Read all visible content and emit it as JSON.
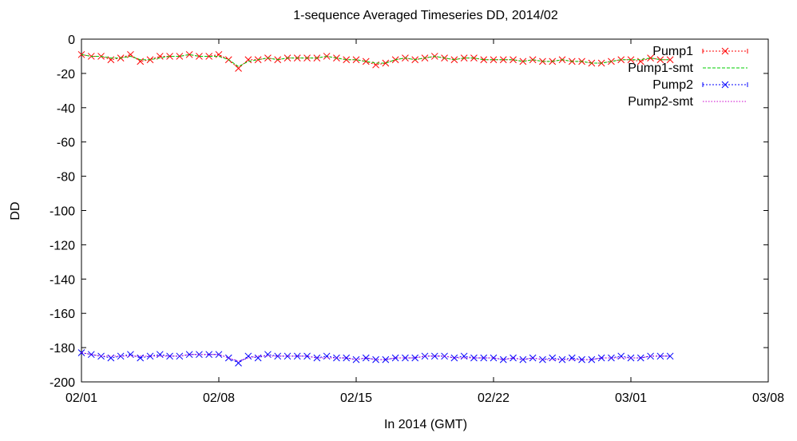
{
  "chart_data": {
    "type": "line",
    "title": "1-sequence Averaged Timeseries DD, 2014/02",
    "xlabel": "In 2014 (GMT)",
    "ylabel": "DD",
    "x_ticks": [
      "02/01",
      "02/08",
      "02/15",
      "02/22",
      "03/01",
      "03/08"
    ],
    "y_ticks": [
      "0",
      "-20",
      "-40",
      "-60",
      "-80",
      "-100",
      "-120",
      "-140",
      "-160",
      "-180",
      "-200"
    ],
    "xlim": [
      "2014-02-01",
      "2014-03-08"
    ],
    "ylim": [
      -200,
      0
    ],
    "grid": false,
    "legend_position": "top-right",
    "x": [
      "2014-02-01T00:00",
      "2014-02-01T12:00",
      "2014-02-02T00:00",
      "2014-02-02T12:00",
      "2014-02-03T00:00",
      "2014-02-03T12:00",
      "2014-02-04T00:00",
      "2014-02-04T12:00",
      "2014-02-05T00:00",
      "2014-02-05T12:00",
      "2014-02-06T00:00",
      "2014-02-06T12:00",
      "2014-02-07T00:00",
      "2014-02-07T12:00",
      "2014-02-08T00:00",
      "2014-02-08T12:00",
      "2014-02-09T00:00",
      "2014-02-09T12:00",
      "2014-02-10T00:00",
      "2014-02-10T12:00",
      "2014-02-11T00:00",
      "2014-02-11T12:00",
      "2014-02-12T00:00",
      "2014-02-12T12:00",
      "2014-02-13T00:00",
      "2014-02-13T12:00",
      "2014-02-14T00:00",
      "2014-02-14T12:00",
      "2014-02-15T00:00",
      "2014-02-15T12:00",
      "2014-02-16T00:00",
      "2014-02-16T12:00",
      "2014-02-17T00:00",
      "2014-02-17T12:00",
      "2014-02-18T00:00",
      "2014-02-18T12:00",
      "2014-02-19T00:00",
      "2014-02-19T12:00",
      "2014-02-20T00:00",
      "2014-02-20T12:00",
      "2014-02-21T00:00",
      "2014-02-21T12:00",
      "2014-02-22T00:00",
      "2014-02-22T12:00",
      "2014-02-23T00:00",
      "2014-02-23T12:00",
      "2014-02-24T00:00",
      "2014-02-24T12:00",
      "2014-02-25T00:00",
      "2014-02-25T12:00",
      "2014-02-26T00:00",
      "2014-02-26T12:00",
      "2014-02-27T00:00",
      "2014-02-27T12:00",
      "2014-02-28T00:00",
      "2014-02-28T12:00",
      "2014-03-01T00:00",
      "2014-03-01T12:00",
      "2014-03-02T00:00",
      "2014-03-02T12:00",
      "2014-03-03T00:00"
    ],
    "series": [
      {
        "name": "Pump1",
        "style": "points-line",
        "color": "#ff0000",
        "values": [
          -9,
          -10,
          -10,
          -12,
          -11,
          -9,
          -13,
          -12,
          -10,
          -10,
          -10,
          -9,
          -10,
          -10,
          -9,
          -12,
          -17,
          -12,
          -12,
          -11,
          -12,
          -11,
          -11,
          -11,
          -11,
          -10,
          -11,
          -12,
          -12,
          -13,
          -15,
          -14,
          -12,
          -11,
          -12,
          -11,
          -10,
          -11,
          -12,
          -11,
          -11,
          -12,
          -12,
          -12,
          -12,
          -13,
          -12,
          -13,
          -13,
          -12,
          -13,
          -13,
          -14,
          -14,
          -13,
          -12,
          -12,
          -13,
          -11,
          -12,
          -12
        ]
      },
      {
        "name": "Pump1-smt",
        "style": "dashed-line",
        "color": "#00cc00",
        "values": [
          -9,
          -10,
          -10,
          -11,
          -11,
          -10,
          -12,
          -12,
          -11,
          -10,
          -10,
          -9,
          -10,
          -10,
          -10,
          -12,
          -16,
          -13,
          -12,
          -11,
          -12,
          -11,
          -11,
          -11,
          -11,
          -10,
          -11,
          -12,
          -12,
          -13,
          -14,
          -14,
          -12,
          -11,
          -12,
          -11,
          -10,
          -11,
          -12,
          -11,
          -11,
          -12,
          -12,
          -12,
          -12,
          -13,
          -12,
          -13,
          -13,
          -12,
          -13,
          -13,
          -14,
          -14,
          -13,
          -12,
          -12,
          -12,
          -11,
          -12,
          -12
        ]
      },
      {
        "name": "Pump2",
        "style": "points-line",
        "color": "#0000ff",
        "values": [
          -183,
          -184,
          -185,
          -186,
          -185,
          -184,
          -186,
          -185,
          -184,
          -185,
          -185,
          -184,
          -184,
          -184,
          -184,
          -186,
          -189,
          -185,
          -186,
          -184,
          -185,
          -185,
          -185,
          -185,
          -186,
          -185,
          -186,
          -186,
          -187,
          -186,
          -187,
          -187,
          -186,
          -186,
          -186,
          -185,
          -185,
          -185,
          -186,
          -185,
          -186,
          -186,
          -186,
          -187,
          -186,
          -187,
          -186,
          -187,
          -186,
          -187,
          -186,
          -187,
          -187,
          -186,
          -186,
          -185,
          -186,
          -186,
          -185,
          -185,
          -185
        ]
      },
      {
        "name": "Pump2-smt",
        "style": "dotted-line",
        "color": "#cc00cc",
        "values": [
          -183,
          -184,
          -185,
          -185,
          -185,
          -185,
          -185,
          -185,
          -185,
          -185,
          -185,
          -184,
          -184,
          -184,
          -184,
          -186,
          -188,
          -186,
          -185,
          -185,
          -185,
          -185,
          -185,
          -185,
          -186,
          -186,
          -186,
          -186,
          -187,
          -186,
          -187,
          -187,
          -186,
          -186,
          -186,
          -185,
          -185,
          -185,
          -186,
          -186,
          -186,
          -186,
          -186,
          -187,
          -186,
          -187,
          -186,
          -187,
          -187,
          -187,
          -187,
          -187,
          -187,
          -186,
          -186,
          -186,
          -186,
          -186,
          -185,
          -185,
          -185
        ]
      }
    ]
  }
}
